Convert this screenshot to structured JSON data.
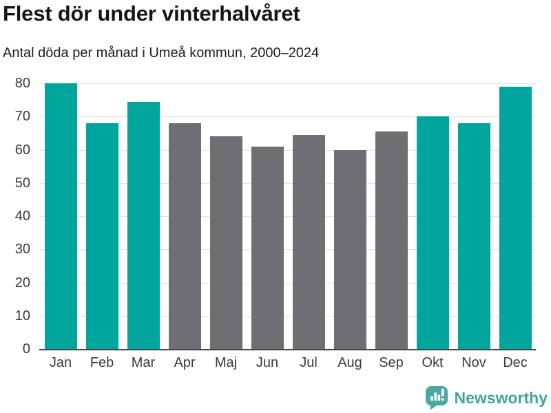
{
  "header": {
    "title": "Flest dör under vinterhalvåret",
    "subtitle": "Antal döda per månad i Umeå kommun, 2000–2024"
  },
  "chart_data": {
    "type": "bar",
    "title": "Flest dör under vinterhalvåret",
    "subtitle": "Antal döda per månad i Umeå kommun, 2000–2024",
    "categories": [
      "Jan",
      "Feb",
      "Mar",
      "Apr",
      "Maj",
      "Jun",
      "Jul",
      "Aug",
      "Sep",
      "Okt",
      "Nov",
      "Dec"
    ],
    "values": [
      80,
      68,
      74.5,
      68,
      64,
      61,
      64.5,
      60,
      65.5,
      70,
      68,
      79
    ],
    "bar_color_keys": [
      "teal",
      "teal",
      "teal",
      "gray",
      "gray",
      "gray",
      "gray",
      "gray",
      "gray",
      "teal",
      "teal",
      "teal"
    ],
    "palette": {
      "teal": "#00a69c",
      "gray": "#6e6e73"
    },
    "xlabel": "",
    "ylabel": "",
    "ylim": [
      0,
      80
    ],
    "yticks": [
      0,
      10,
      20,
      30,
      40,
      50,
      60,
      70,
      80
    ],
    "grid": "horizontal",
    "legend": "none"
  },
  "footer": {
    "brand": "Newsworthy",
    "brand_color": "#43a49e",
    "logo_icon": "bar-chart-speech-bubble-icon"
  },
  "colors": {
    "background": "#ffffff",
    "title_text": "#161616",
    "tick_text": "#3a3a3a",
    "gridline": "#e2e2e2",
    "axis_line": "#474747"
  }
}
